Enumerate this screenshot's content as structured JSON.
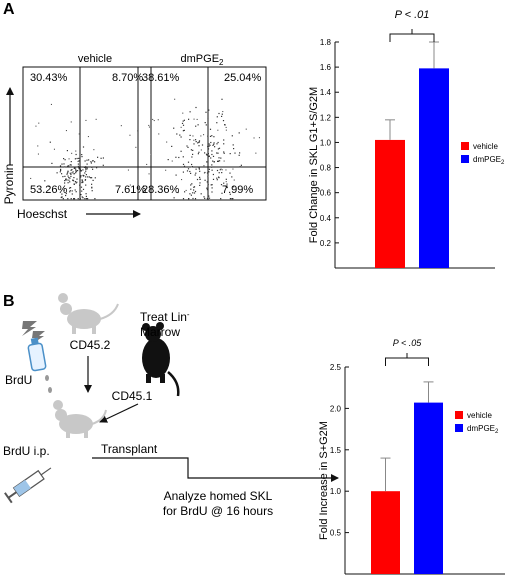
{
  "panel_a": {
    "letter": "A",
    "flow": {
      "y_axis_label": "Pyronin",
      "x_axis_label": "Hoeschst",
      "plots": [
        {
          "title": "vehicle",
          "title_sub": "",
          "quadrants": {
            "tl": "30.43%",
            "tr": "8.70%",
            "bl": "53.26%",
            "br": "7.61%"
          }
        },
        {
          "title": "dmPGE",
          "title_sub": "2",
          "quadrants": {
            "tl": "38.61%",
            "tr": "25.04%",
            "bl": "28.36%",
            "br": "7.99%"
          }
        }
      ]
    }
  },
  "panel_b": {
    "letter": "B",
    "schematic": {
      "donor_label": "CD45.2",
      "recipient_label": "CD45.1",
      "treat_line1": "Treat Lin",
      "treat_sup": "-",
      "treat_line2": "Marrow",
      "brdu_label": "BrdU",
      "brdu_ip_label": "BrdU i.p.",
      "transplant_label": "Transplant",
      "analyze_line1": "Analyze homed SKL",
      "analyze_line2": "for BrdU @ 16 hours"
    }
  },
  "colors": {
    "vehicle": "#ff0000",
    "dmPGE2": "#0000ff",
    "mouse_gray": "#c8c8c8",
    "mouse_black": "#111111"
  },
  "chart_data": [
    {
      "type": "bar",
      "ylabel": "Fold Change in SKL G1+S/G2M",
      "ylim": [
        0,
        1.8
      ],
      "yticks": [
        "0.2",
        "0.4",
        "0.6",
        "0.8",
        "1.0",
        "1.2",
        "1.4",
        "1.6",
        "1.8"
      ],
      "categories": [
        "vehicle",
        "dmPGE2"
      ],
      "values": [
        1.02,
        1.59
      ],
      "errors": [
        0.16,
        0.21
      ],
      "legend": [
        {
          "label": "vehicle",
          "sub": ""
        },
        {
          "label": "dmPGE",
          "sub": "2"
        }
      ],
      "legend_position": "right",
      "annotation": "P < .01"
    },
    {
      "type": "bar",
      "ylabel": "Fold Increase in S+G2M",
      "ylim": [
        0,
        2.5
      ],
      "yticks": [
        "0.5",
        "1.0",
        "1.5",
        "2.0",
        "2.5"
      ],
      "categories": [
        "vehicle",
        "dmPGE2"
      ],
      "values": [
        1.0,
        2.07
      ],
      "errors": [
        0.4,
        0.25
      ],
      "legend": [
        {
          "label": "vehicle",
          "sub": ""
        },
        {
          "label": "dmPGE",
          "sub": "2"
        }
      ],
      "legend_position": "right",
      "annotation": "P < .05"
    }
  ]
}
